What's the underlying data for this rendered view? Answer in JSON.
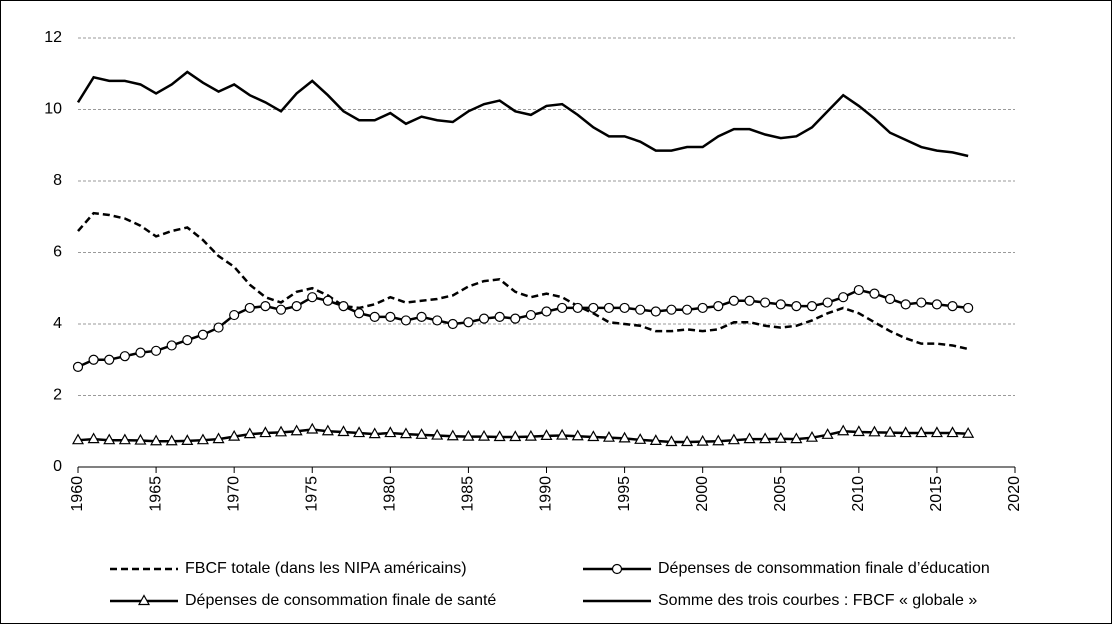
{
  "chart_data": {
    "type": "line",
    "x": [
      1960,
      1961,
      1962,
      1963,
      1964,
      1965,
      1966,
      1967,
      1968,
      1969,
      1970,
      1971,
      1972,
      1973,
      1974,
      1975,
      1976,
      1977,
      1978,
      1979,
      1980,
      1981,
      1982,
      1983,
      1984,
      1985,
      1986,
      1987,
      1988,
      1989,
      1990,
      1991,
      1992,
      1993,
      1994,
      1995,
      1996,
      1997,
      1998,
      1999,
      2000,
      2001,
      2002,
      2003,
      2004,
      2005,
      2006,
      2007,
      2008,
      2009,
      2010,
      2011,
      2012,
      2013,
      2014,
      2015,
      2016,
      2017
    ],
    "series": [
      {
        "name": "FBCF totale (dans les NIPA américains)",
        "color": "#000000",
        "dash": "dashed",
        "marker": "none",
        "values": [
          6.6,
          7.1,
          7.05,
          6.95,
          6.75,
          6.45,
          6.6,
          6.7,
          6.35,
          5.9,
          5.6,
          5.1,
          4.75,
          4.6,
          4.9,
          5.0,
          4.8,
          4.5,
          4.45,
          4.55,
          4.75,
          4.6,
          4.65,
          4.7,
          4.8,
          5.05,
          5.2,
          5.25,
          4.9,
          4.75,
          4.85,
          4.75,
          4.5,
          4.3,
          4.05,
          4.0,
          3.95,
          3.8,
          3.8,
          3.85,
          3.8,
          3.85,
          4.05,
          4.05,
          3.95,
          3.9,
          3.95,
          4.1,
          4.3,
          4.45,
          4.3,
          4.05,
          3.8,
          3.6,
          3.45,
          3.45,
          3.4,
          3.3
        ]
      },
      {
        "name": "Dépenses de consommation finale d’éducation",
        "color": "#000000",
        "dash": "solid",
        "marker": "circle",
        "values": [
          2.8,
          3.0,
          3.0,
          3.1,
          3.2,
          3.25,
          3.4,
          3.55,
          3.7,
          3.9,
          4.25,
          4.45,
          4.5,
          4.4,
          4.5,
          4.75,
          4.65,
          4.5,
          4.3,
          4.2,
          4.2,
          4.1,
          4.2,
          4.1,
          4.0,
          4.05,
          4.15,
          4.2,
          4.15,
          4.25,
          4.35,
          4.45,
          4.45,
          4.45,
          4.45,
          4.45,
          4.4,
          4.35,
          4.4,
          4.4,
          4.45,
          4.5,
          4.65,
          4.65,
          4.6,
          4.55,
          4.5,
          4.5,
          4.6,
          4.75,
          4.95,
          4.85,
          4.7,
          4.55,
          4.6,
          4.55,
          4.5,
          4.45
        ]
      },
      {
        "name": "Dépenses de consommation finale de santé",
        "color": "#000000",
        "dash": "solid",
        "marker": "triangle",
        "values": [
          0.75,
          0.78,
          0.75,
          0.75,
          0.74,
          0.72,
          0.72,
          0.73,
          0.75,
          0.78,
          0.85,
          0.92,
          0.95,
          0.97,
          1.0,
          1.05,
          1.0,
          0.98,
          0.95,
          0.92,
          0.95,
          0.92,
          0.9,
          0.88,
          0.86,
          0.85,
          0.85,
          0.84,
          0.84,
          0.85,
          0.87,
          0.88,
          0.86,
          0.84,
          0.82,
          0.8,
          0.76,
          0.73,
          0.7,
          0.7,
          0.71,
          0.72,
          0.75,
          0.78,
          0.78,
          0.79,
          0.78,
          0.82,
          0.9,
          1.0,
          0.98,
          0.97,
          0.96,
          0.95,
          0.95,
          0.95,
          0.95,
          0.93
        ]
      },
      {
        "name": "Somme des trois courbes : FBCF « globale »",
        "color": "#000000",
        "dash": "solid",
        "marker": "none",
        "values": [
          10.2,
          10.9,
          10.8,
          10.8,
          10.7,
          10.45,
          10.7,
          11.05,
          10.75,
          10.5,
          10.7,
          10.4,
          10.2,
          9.95,
          10.45,
          10.8,
          10.4,
          9.95,
          9.7,
          9.7,
          9.9,
          9.6,
          9.8,
          9.7,
          9.65,
          9.95,
          10.15,
          10.25,
          9.95,
          9.85,
          10.1,
          10.15,
          9.85,
          9.5,
          9.25,
          9.25,
          9.1,
          8.85,
          8.85,
          8.95,
          8.95,
          9.25,
          9.45,
          9.45,
          9.3,
          9.2,
          9.25,
          9.5,
          9.95,
          10.4,
          10.1,
          9.75,
          9.35,
          9.15,
          8.95,
          8.85,
          8.8,
          8.7
        ]
      }
    ],
    "xlim": [
      1960,
      2020
    ],
    "xticks": [
      1960,
      1965,
      1970,
      1975,
      1980,
      1985,
      1990,
      1995,
      2000,
      2005,
      2010,
      2015,
      2020
    ],
    "ylim": [
      0,
      12
    ],
    "yticks": [
      0,
      2,
      4,
      6,
      8,
      10,
      12
    ],
    "grid": true,
    "legend": "bottom"
  }
}
